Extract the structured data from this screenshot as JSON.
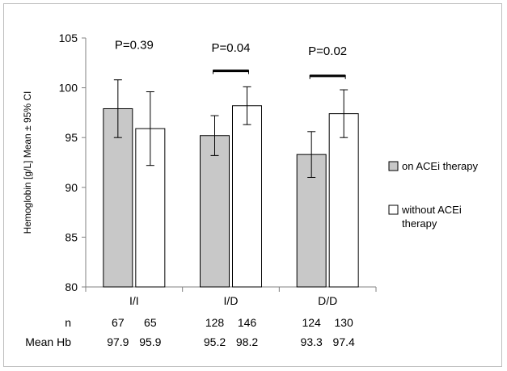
{
  "chart_data": {
    "type": "bar",
    "ylabel": "Hemoglobin [g/L]  Mean ± 95% CI",
    "ylim": [
      80,
      105
    ],
    "yticks": [
      "80",
      "85",
      "90",
      "95",
      "100",
      "105"
    ],
    "categories": [
      "I/I",
      "I/D",
      "D/D"
    ],
    "series": [
      {
        "name": "on ACEi therapy",
        "color": "#c8c8c8",
        "values": [
          97.9,
          95.2,
          93.3
        ],
        "ci_low": [
          95.0,
          93.2,
          91.0
        ],
        "ci_high": [
          100.8,
          97.2,
          95.6
        ],
        "n": [
          "67",
          "128",
          "124"
        ],
        "mean_hb": [
          "97.9",
          "95.2",
          "93.3"
        ]
      },
      {
        "name": "without ACEi therapy",
        "color": "#ffffff",
        "values": [
          95.9,
          98.2,
          97.4
        ],
        "ci_low": [
          92.2,
          96.3,
          95.0
        ],
        "ci_high": [
          99.6,
          100.1,
          99.8
        ],
        "n": [
          "65",
          "146",
          "130"
        ],
        "mean_hb": [
          "95.9",
          "98.2",
          "97.4"
        ]
      }
    ],
    "annotations": [
      {
        "text": "P=0.39",
        "category": 0,
        "y": 103.9,
        "bracket": false
      },
      {
        "text": "P=0.04",
        "category": 1,
        "y": 103.6,
        "bracket": true,
        "bracket_y": 101.7
      },
      {
        "text": "P=0.02",
        "category": 2,
        "y": 103.3,
        "bracket": true,
        "bracket_y": 101.2
      }
    ],
    "legend": {
      "position": "right",
      "items": [
        {
          "label": "on ACEi therapy",
          "color": "#c8c8c8"
        },
        {
          "label": "without ACEi therapy",
          "color": "#ffffff"
        }
      ]
    },
    "table_rows": [
      {
        "label": "n",
        "key": "n"
      },
      {
        "label": "Mean Hb",
        "key": "mean_hb"
      }
    ],
    "grid": false
  }
}
